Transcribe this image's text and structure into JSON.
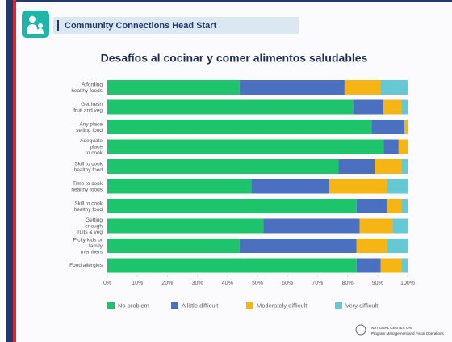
{
  "header": {
    "title": "Community Connections Head Start"
  },
  "footer": {
    "org_line1": "NATIONAL CENTER ON",
    "org_line2": "Program Management and Fiscal Operations"
  },
  "chart_data": {
    "type": "stacked_bar_horizontal",
    "title": "Desafíos al cocinar y comer alimentos saludables",
    "categories": [
      "Affording\nhealthy foods",
      "Get fresh\nfruit and veg",
      "Any place\nselling food",
      "Adequate\nplace\nto cook",
      "Skill to cook\nhealthy food",
      "Time to cook\nhealthy foods",
      "Skill to cook\nhealthy food",
      "Getting\nenough\nfruits & veg",
      "Picky kids or\nfamily\nmembers",
      "Food allergies"
    ],
    "series": [
      {
        "name": "No problem",
        "color": "#1ec46b",
        "values": [
          44,
          82,
          88,
          92,
          77,
          48,
          83,
          52,
          44,
          83
        ]
      },
      {
        "name": "A little difficult",
        "color": "#4a70bf",
        "values": [
          35,
          10,
          11,
          5,
          12,
          26,
          10,
          32,
          39,
          8
        ]
      },
      {
        "name": "Moderately difficult",
        "color": "#f5b514",
        "values": [
          12,
          6,
          1,
          3,
          9,
          19,
          5,
          11,
          10,
          7
        ]
      },
      {
        "name": "Very difficult",
        "color": "#66c8d3",
        "values": [
          9,
          2,
          0,
          0,
          2,
          7,
          2,
          5,
          7,
          2
        ]
      }
    ],
    "xlim": [
      0,
      100
    ],
    "xticks": [
      {
        "value": 0,
        "label": "0%"
      },
      {
        "value": 10,
        "label": "10%"
      },
      {
        "value": 20,
        "label": "20%"
      },
      {
        "value": 30,
        "label": "30%"
      },
      {
        "value": 40,
        "label": "40%"
      },
      {
        "value": 50,
        "label": "50%"
      },
      {
        "value": 60,
        "label": "60%"
      },
      {
        "value": 70,
        "label": "70%"
      },
      {
        "value": 80,
        "label": "80%"
      },
      {
        "value": 90,
        "label": "90%"
      },
      {
        "value": 100,
        "label": "100%"
      }
    ],
    "legend": "bottom"
  }
}
